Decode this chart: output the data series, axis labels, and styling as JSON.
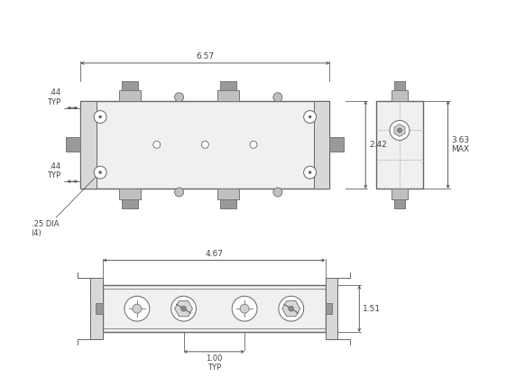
{
  "line_color": "#666666",
  "dark_color": "#444444",
  "body_fill": "#f0f0f0",
  "connector_fill": "#999999",
  "connector_dark": "#777777",
  "white": "#ffffff",
  "dim_color": "#444444",
  "dim_657": "6.57",
  "dim_044a": ".44\nTYP",
  "dim_044b": ".44\nTYP",
  "dim_242": "2.42",
  "dim_025": ".25 DIA\n(4)",
  "dim_363": "3.63\nMAX",
  "dim_467": "4.67",
  "dim_151": "1.51",
  "dim_100": "1.00\nTYP"
}
